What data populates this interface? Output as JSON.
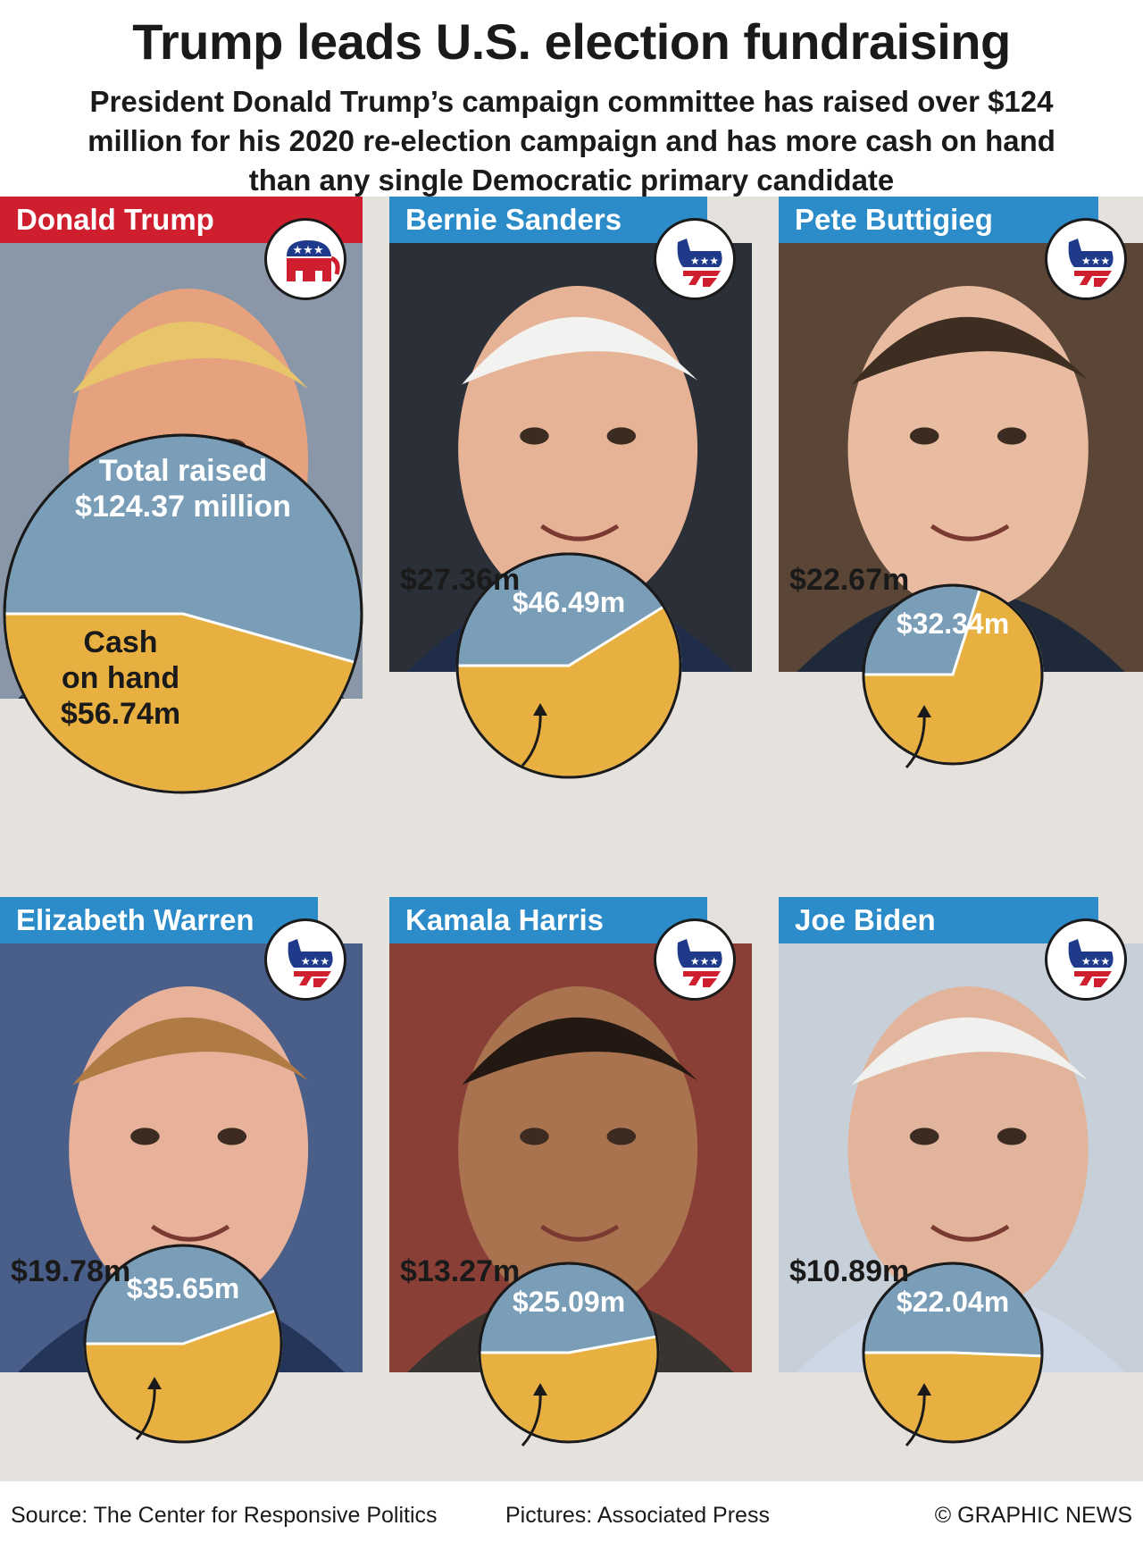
{
  "title": "Trump leads U.S. election fundraising",
  "subtitle": "President Donald Trump’s campaign committee has raised over $124 million for his 2020 re-election campaign and has more cash on hand than any single Democratic primary candidate",
  "colors": {
    "republican": "#cf1f2e",
    "democrat": "#2c8bc9",
    "total_raised": "#7a9db8",
    "cash_on_hand": "#e8b040",
    "background": "#e5e2dd"
  },
  "trump_pie": {
    "total_label": "Total raised",
    "total_value": "$124.37 million",
    "cash_label_line1": "Cash",
    "cash_label_line2": "on hand",
    "cash_value": "$56.74m"
  },
  "candidates": [
    {
      "name": "Donald Trump",
      "party": "Republican",
      "party_icon": "elephant-icon",
      "total_label": "",
      "cash_label": ""
    },
    {
      "name": "Bernie Sanders",
      "party": "Democratic",
      "party_icon": "donkey-icon",
      "total_label": "$46.49m",
      "cash_label": "$27.36m"
    },
    {
      "name": "Pete Buttigieg",
      "party": "Democratic",
      "party_icon": "donkey-icon",
      "total_label": "$32.34m",
      "cash_label": "$22.67m"
    },
    {
      "name": "Elizabeth Warren",
      "party": "Democratic",
      "party_icon": "donkey-icon",
      "total_label": "$35.65m",
      "cash_label": "$19.78m"
    },
    {
      "name": "Kamala Harris",
      "party": "Democratic",
      "party_icon": "donkey-icon",
      "total_label": "$25.09m",
      "cash_label": "$13.27m"
    },
    {
      "name": "Joe Biden",
      "party": "Democratic",
      "party_icon": "donkey-icon",
      "total_label": "$22.04m",
      "cash_label": "$10.89m"
    }
  ],
  "chart_data": {
    "type": "pie",
    "unit": "$ million",
    "series": [
      {
        "name": "Total raised"
      },
      {
        "name": "Cash on hand"
      }
    ],
    "candidates": [
      "Donald Trump",
      "Bernie Sanders",
      "Pete Buttigieg",
      "Elizabeth Warren",
      "Kamala Harris",
      "Joe Biden"
    ],
    "total_raised": [
      124.37,
      46.49,
      32.34,
      35.65,
      25.09,
      22.04
    ],
    "cash_on_hand": [
      56.74,
      27.36,
      22.67,
      19.78,
      13.27,
      10.89
    ]
  },
  "footer": {
    "source": "Source: The Center for Responsive Politics",
    "pictures": "Pictures: Associated Press",
    "credit": "© GRAPHIC NEWS"
  }
}
